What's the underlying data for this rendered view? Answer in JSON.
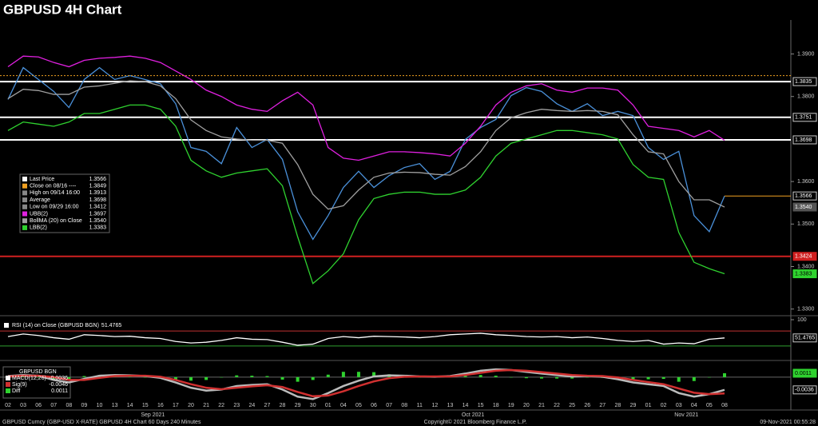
{
  "title": "GBPUSD 4H Chart",
  "footer": {
    "left": "GBPUSD Curncy (GBP-USD X-RATE) GBPUSD 4H Chart 60 Days 240 Minutes",
    "center": "Copyright© 2021 Bloomberg Finance L.P.",
    "right": "09-Nov-2021 00:55:28"
  },
  "chart_data": [
    {
      "type": "line",
      "categories": [
        "02",
        "03",
        "06",
        "07",
        "08",
        "09",
        "10",
        "13",
        "14",
        "15",
        "16",
        "17",
        "20",
        "21",
        "22",
        "23",
        "24",
        "27",
        "28",
        "29",
        "30",
        "01",
        "04",
        "05",
        "06",
        "07",
        "08",
        "11",
        "12",
        "13",
        "14",
        "15",
        "18",
        "19",
        "20",
        "21",
        "22",
        "25",
        "26",
        "27",
        "28",
        "29",
        "01",
        "02",
        "03",
        "04",
        "05",
        "08"
      ],
      "months": [
        "Sep 2021",
        "Oct 2021",
        "Nov 2021"
      ],
      "ylim": [
        1.329,
        1.398
      ],
      "yticks": [
        {
          "value": 1.39,
          "label": "1.3900"
        },
        {
          "value": 1.38,
          "label": "1.3800"
        },
        {
          "value": 1.36,
          "label": "1.3600"
        },
        {
          "value": 1.35,
          "label": "1.3500"
        },
        {
          "value": 1.34,
          "label": "1.3400"
        },
        {
          "value": 1.33,
          "label": "1.3300"
        }
      ],
      "series": [
        {
          "name": "Last Price",
          "color": "#4a90d9",
          "swatch": "#ffffff",
          "last": 1.3566,
          "box": "#000000",
          "values": [
            1.3793,
            1.3868,
            1.384,
            1.3812,
            1.3774,
            1.384,
            1.3868,
            1.384,
            1.3849,
            1.384,
            1.383,
            1.3783,
            1.368,
            1.3671,
            1.3642,
            1.3727,
            1.368,
            1.3699,
            1.3652,
            1.3529,
            1.3464,
            1.352,
            1.3586,
            1.3624,
            1.3586,
            1.3614,
            1.3633,
            1.3642,
            1.3605,
            1.3624,
            1.3699,
            1.3727,
            1.3746,
            1.3802,
            1.3821,
            1.3812,
            1.3783,
            1.3765,
            1.3783,
            1.3755,
            1.3765,
            1.3755,
            1.368,
            1.3652,
            1.3671,
            1.352,
            1.3482,
            1.3566
          ]
        },
        {
          "name": "BollMA (20)  on Close",
          "color": "#a0a0a0",
          "swatch": "#a0a0a0",
          "last": {
            "value": 1.354,
            "label": "1.3540"
          },
          "box": "#555555",
          "values": [
            1.3795,
            1.3817,
            1.3814,
            1.3805,
            1.3805,
            1.3822,
            1.3825,
            1.3831,
            1.3837,
            1.3835,
            1.3825,
            1.3795,
            1.3745,
            1.372,
            1.3705,
            1.37,
            1.3697,
            1.3697,
            1.369,
            1.364,
            1.357,
            1.3535,
            1.3543,
            1.358,
            1.361,
            1.362,
            1.3622,
            1.3621,
            1.3617,
            1.3615,
            1.3635,
            1.367,
            1.372,
            1.375,
            1.3762,
            1.377,
            1.3767,
            1.3765,
            1.3767,
            1.3765,
            1.3757,
            1.371,
            1.367,
            1.3665,
            1.36,
            1.3557,
            1.3557,
            1.354
          ]
        },
        {
          "name": "UBB(2)",
          "color": "#e020e0",
          "swatch": "#e020e0",
          "last": 1.3697,
          "values": [
            1.387,
            1.3895,
            1.3893,
            1.388,
            1.387,
            1.3885,
            1.389,
            1.3892,
            1.3895,
            1.389,
            1.388,
            1.386,
            1.384,
            1.3815,
            1.38,
            1.378,
            1.377,
            1.3765,
            1.379,
            1.381,
            1.378,
            1.368,
            1.3655,
            1.365,
            1.366,
            1.367,
            1.367,
            1.3668,
            1.3665,
            1.366,
            1.369,
            1.373,
            1.378,
            1.381,
            1.3825,
            1.383,
            1.3815,
            1.381,
            1.382,
            1.382,
            1.3815,
            1.378,
            1.373,
            1.3725,
            1.372,
            1.3705,
            1.372,
            1.3697
          ]
        },
        {
          "name": "LBB(2)",
          "color": "#2fd22f",
          "swatch": "#2fd22f",
          "last": 1.3383,
          "box": "#2fd22f",
          "values": [
            1.372,
            1.374,
            1.3735,
            1.373,
            1.374,
            1.376,
            1.376,
            1.377,
            1.378,
            1.378,
            1.377,
            1.373,
            1.365,
            1.3625,
            1.361,
            1.362,
            1.3625,
            1.363,
            1.359,
            1.347,
            1.336,
            1.339,
            1.343,
            1.351,
            1.356,
            1.357,
            1.3575,
            1.3575,
            1.357,
            1.357,
            1.358,
            1.361,
            1.366,
            1.369,
            1.37,
            1.371,
            1.372,
            1.372,
            1.3715,
            1.371,
            1.37,
            1.364,
            1.361,
            1.3605,
            1.348,
            1.341,
            1.3395,
            1.3383
          ]
        }
      ],
      "notes": [
        {
          "text": "Close on 08/16 ----",
          "value": 1.3849,
          "color": "#f0a020"
        },
        {
          "text": "High on 09/14 16:00",
          "value": 1.3913,
          "color": "#888888"
        },
        {
          "text": "Average",
          "value": 1.3698,
          "color": "#888888"
        },
        {
          "text": "Low on 09/29 16:00",
          "value": 1.3412,
          "color": "#888888"
        }
      ],
      "levels": [
        {
          "value": 1.3835,
          "color": "#ffffff"
        },
        {
          "value": 1.3751,
          "color": "#ffffff"
        },
        {
          "value": 1.3698,
          "color": "#ffffff"
        },
        {
          "value": 1.3424,
          "color": "#d02020"
        }
      ]
    },
    {
      "type": "line",
      "title": "RSI (14)  on Close (GBPUSD BGN)",
      "ylim": [
        0,
        100
      ],
      "yticks": [
        100
      ],
      "bands": [
        {
          "value": 70,
          "color": "#c03030"
        },
        {
          "value": 30,
          "color": "#2fa02f"
        }
      ],
      "series": [
        {
          "color": "#ffffff",
          "last": 51.4765,
          "values": [
            55,
            62,
            58,
            52,
            48,
            60,
            58,
            55,
            56,
            52,
            50,
            42,
            38,
            40,
            45,
            52,
            48,
            47,
            40,
            32,
            35,
            50,
            55,
            52,
            56,
            55,
            54,
            52,
            55,
            60,
            62,
            64,
            60,
            58,
            55,
            54,
            55,
            52,
            54,
            50,
            45,
            42,
            45,
            35,
            38,
            36,
            48,
            51.4765
          ]
        }
      ]
    },
    {
      "type": "line",
      "title": "GBPUSD BGN",
      "ylim": [
        -0.0086,
        0.0038
      ],
      "series": [
        {
          "name": "Diff",
          "kind": "bar",
          "color": "#2fd22f",
          "last": 0.0011,
          "box": "#2fd22f",
          "values": [
            0.0001,
            0.0002,
            0,
            -0.0008,
            -0.0007,
            0.0003,
            0.0006,
            0.0003,
            0.0001,
            -0.0001,
            -0.0003,
            -0.0007,
            -0.001,
            -0.0008,
            -0.0001,
            0.0005,
            0.0004,
            0.0003,
            -0.0007,
            -0.0013,
            -0.0008,
            0.0007,
            0.0015,
            0.0015,
            0.0014,
            0.0008,
            0.0003,
            0,
            -0.0001,
            0.0001,
            0.0004,
            0.0006,
            0.0004,
            0,
            -0.0003,
            -0.0004,
            -0.0004,
            -0.0004,
            -0.0001,
            -0.0002,
            -0.0005,
            -0.0007,
            -0.0006,
            -0.0005,
            -0.0013,
            -0.0011,
            0,
            0.0011
          ]
        },
        {
          "name": "MACD(12,26)",
          "color": "#bbbbbb",
          "swatch": "#ffffff",
          "last": -0.0036,
          "box": "#000000",
          "values": [
            0.0003,
            0.0006,
            0.0004,
            -0.0008,
            -0.0015,
            -0.0005,
            0.0004,
            0.0006,
            0.0005,
            0.0003,
            -0.0002,
            -0.0015,
            -0.003,
            -0.0038,
            -0.0035,
            -0.0025,
            -0.0022,
            -0.002,
            -0.0035,
            -0.0055,
            -0.0062,
            -0.0045,
            -0.0025,
            -0.001,
            0.0002,
            0.0005,
            0.0004,
            0.0002,
            0.0001,
            0.0003,
            0.001,
            0.0018,
            0.0022,
            0.002,
            0.0015,
            0.001,
            0.0006,
            0.0002,
            0.0003,
            0.0001,
            -0.0006,
            -0.0015,
            -0.002,
            -0.0025,
            -0.0045,
            -0.0055,
            -0.0048,
            -0.0036
          ]
        },
        {
          "name": "Sig(9)",
          "color": "#d03030",
          "swatch": "#d03030",
          "last": -0.0046,
          "values": [
            0.0002,
            0.0004,
            0.0004,
            0,
            -0.0008,
            -0.0008,
            -0.0002,
            0.0003,
            0.0004,
            0.0004,
            0.0001,
            -0.0008,
            -0.002,
            -0.003,
            -0.0034,
            -0.003,
            -0.0026,
            -0.0023,
            -0.0028,
            -0.0042,
            -0.0054,
            -0.0052,
            -0.004,
            -0.0025,
            -0.0012,
            -0.0003,
            0.0001,
            0.0002,
            0.0002,
            0.0002,
            0.0006,
            0.0012,
            0.0018,
            0.002,
            0.0018,
            0.0014,
            0.001,
            0.0006,
            0.0004,
            0.0003,
            -0.0001,
            -0.0008,
            -0.0014,
            -0.002,
            -0.0032,
            -0.0044,
            -0.0048,
            -0.0046
          ]
        }
      ]
    }
  ]
}
